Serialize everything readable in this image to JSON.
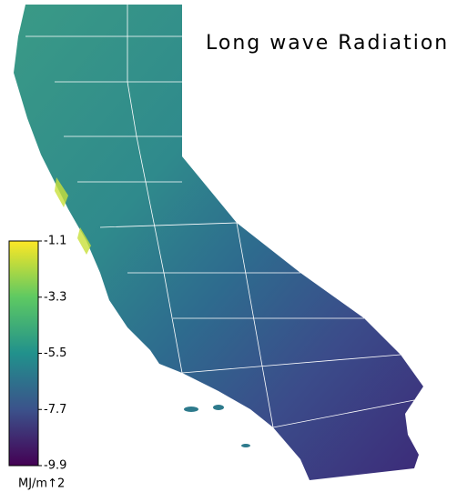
{
  "title": "Long wave Radiation",
  "colorbar": {
    "label": "MJ/m↑2",
    "lim": [
      -9.9,
      -1.1
    ],
    "ticks": [
      -1.1,
      -3.3,
      -5.5,
      -7.7,
      -9.9
    ]
  }
}
